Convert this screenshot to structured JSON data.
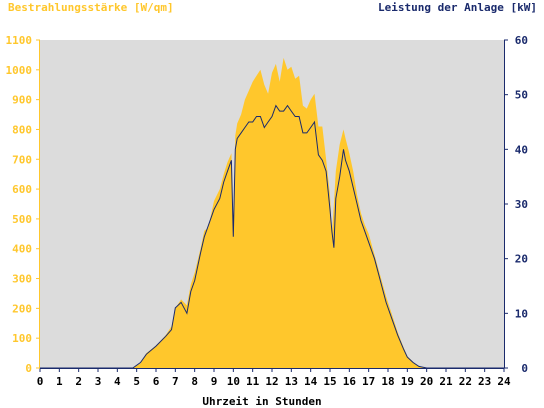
{
  "chart_data": {
    "type": "area",
    "left_axis_title": "Bestrahlungsstärke [W/qm]",
    "right_axis_title": "Leistung der Anlage [kW]",
    "xlabel": "Uhrzeit in Stunden",
    "xlim": [
      0,
      24
    ],
    "ylim_left": [
      0,
      1100
    ],
    "ylim_right": [
      0,
      60
    ],
    "x_ticks": [
      "0",
      "1",
      "2",
      "3",
      "4",
      "5",
      "6",
      "7",
      "8",
      "9",
      "10",
      "11",
      "12",
      "13",
      "14",
      "15",
      "16",
      "17",
      "18",
      "19",
      "20",
      "21",
      "22",
      "23",
      "24"
    ],
    "left_ticks": [
      "0",
      "100",
      "200",
      "300",
      "400",
      "500",
      "600",
      "700",
      "800",
      "900",
      "1000",
      "1100"
    ],
    "right_ticks": [
      "0",
      "10",
      "20",
      "30",
      "40",
      "50",
      "60"
    ],
    "colors": {
      "irradiance": "#ffc72c",
      "power": "#1a2a6c",
      "plot_bg": "#dcdcdc",
      "left_axis": "#ffc72c",
      "right_axis": "#1a2a6c"
    },
    "series": [
      {
        "name": "Bestrahlungsstärke [W/qm]",
        "axis": "left",
        "x": [
          0,
          4.8,
          5.2,
          5.5,
          6.0,
          6.5,
          6.8,
          7.0,
          7.3,
          7.6,
          7.8,
          8.0,
          8.3,
          8.5,
          8.7,
          9.0,
          9.3,
          9.5,
          9.7,
          9.9,
          10.0,
          10.1,
          10.2,
          10.4,
          10.6,
          10.8,
          11.0,
          11.2,
          11.4,
          11.6,
          11.8,
          12.0,
          12.2,
          12.4,
          12.6,
          12.8,
          13.0,
          13.2,
          13.4,
          13.6,
          13.8,
          14.0,
          14.2,
          14.4,
          14.6,
          14.8,
          15.0,
          15.1,
          15.2,
          15.3,
          15.5,
          15.7,
          15.8,
          16.0,
          16.2,
          16.4,
          16.6,
          16.8,
          17.0,
          17.3,
          17.6,
          17.9,
          18.2,
          18.5,
          18.8,
          19.0,
          19.3,
          19.6,
          20.0,
          20.4,
          20.8,
          21.0,
          24
        ],
        "values": [
          0,
          0,
          15,
          50,
          75,
          110,
          140,
          200,
          230,
          210,
          280,
          320,
          400,
          460,
          470,
          560,
          600,
          650,
          690,
          720,
          460,
          780,
          820,
          850,
          900,
          930,
          960,
          980,
          1000,
          950,
          920,
          990,
          1020,
          960,
          1040,
          1000,
          1010,
          970,
          980,
          880,
          870,
          900,
          920,
          810,
          810,
          700,
          580,
          450,
          550,
          660,
          750,
          800,
          770,
          720,
          660,
          580,
          520,
          480,
          450,
          380,
          310,
          240,
          180,
          120,
          70,
          40,
          20,
          5,
          0,
          0,
          0,
          0,
          0
        ]
      },
      {
        "name": "Leistung der Anlage [kW]",
        "axis": "right",
        "x": [
          0,
          4.8,
          5.2,
          5.5,
          6.0,
          6.5,
          6.8,
          7.0,
          7.3,
          7.6,
          7.8,
          8.0,
          8.3,
          8.5,
          8.7,
          9.0,
          9.3,
          9.5,
          9.7,
          9.9,
          10.0,
          10.1,
          10.2,
          10.4,
          10.6,
          10.8,
          11.0,
          11.2,
          11.4,
          11.6,
          11.8,
          12.0,
          12.2,
          12.4,
          12.6,
          12.8,
          13.0,
          13.2,
          13.4,
          13.6,
          13.8,
          14.0,
          14.2,
          14.4,
          14.6,
          14.8,
          15.0,
          15.1,
          15.2,
          15.3,
          15.5,
          15.7,
          15.8,
          16.0,
          16.2,
          16.4,
          16.6,
          16.8,
          17.0,
          17.3,
          17.6,
          17.9,
          18.2,
          18.5,
          18.8,
          19.0,
          19.3,
          19.6,
          20.0,
          20.4,
          20.8,
          21.0,
          24
        ],
        "values": [
          0,
          0,
          1,
          2.5,
          4,
          5.8,
          7,
          11,
          12,
          10,
          14,
          16,
          21,
          24,
          26,
          29,
          31,
          34,
          36,
          38,
          24,
          40,
          42,
          43,
          44,
          45,
          45,
          46,
          46,
          44,
          45,
          46,
          48,
          47,
          47,
          48,
          47,
          46,
          46,
          43,
          43,
          44,
          45,
          39,
          38,
          36,
          29,
          25,
          22,
          31,
          35,
          40,
          38,
          36,
          33,
          30,
          27,
          25,
          23,
          20,
          16,
          12,
          9,
          6,
          3.5,
          2,
          1,
          0.3,
          0,
          0,
          0,
          0,
          0
        ]
      }
    ]
  }
}
